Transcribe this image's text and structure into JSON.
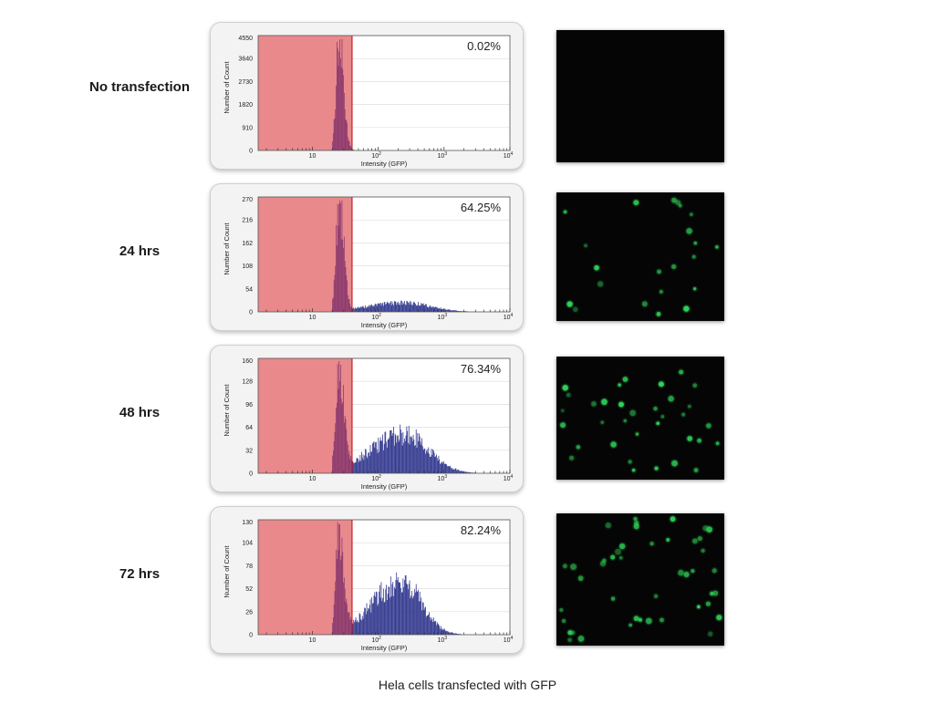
{
  "caption": "Hela cells transfected with GFP",
  "colors": {
    "gate_fill": "#e9898c",
    "gate_line": "#c8202a",
    "histogram_negative": "#8c3a6e",
    "histogram_positive": "#33398f",
    "cell_green": "#2fd45a"
  },
  "chart_data": [
    {
      "type": "bar",
      "row_label": "No transfection",
      "percentage_label": "0.02%",
      "xlabel": "Intensity (GFP)",
      "ylabel": "Number of Count",
      "x_scale": "log",
      "xlim": [
        1.5,
        10000
      ],
      "x_ticks": [
        {
          "label": "10",
          "exp": null
        },
        {
          "label": "10",
          "exp": "2"
        },
        {
          "label": "10",
          "exp": "3"
        },
        {
          "label": "10",
          "exp": "4"
        }
      ],
      "ylim": [
        0,
        4550
      ],
      "y_ticks": [
        "0",
        "910",
        "1820",
        "2730",
        "3640",
        "4550"
      ],
      "gate_max": 40,
      "distribution": {
        "negative_peak_x": 25,
        "negative_peak_y": 4450,
        "positive_center_x": null,
        "positive_peak_y": 0,
        "positive_width_log": 0
      }
    },
    {
      "type": "bar",
      "row_label": "24 hrs",
      "percentage_label": "64.25%",
      "xlabel": "Intensity (GFP)",
      "ylabel": "Number of Count",
      "x_scale": "log",
      "xlim": [
        1.5,
        10000
      ],
      "x_ticks": [
        {
          "label": "10",
          "exp": null
        },
        {
          "label": "10",
          "exp": "2"
        },
        {
          "label": "10",
          "exp": "3"
        },
        {
          "label": "10",
          "exp": "4"
        }
      ],
      "ylim": [
        0,
        270
      ],
      "y_ticks": [
        "0",
        "54",
        "108",
        "162",
        "216",
        "270"
      ],
      "gate_max": 40,
      "distribution": {
        "negative_peak_x": 25,
        "negative_peak_y": 262,
        "positive_center_x": 250,
        "positive_peak_y": 22,
        "positive_width_log": 0.65
      }
    },
    {
      "type": "bar",
      "row_label": "48 hrs",
      "percentage_label": "76.34%",
      "xlabel": "Intensity (GFP)",
      "ylabel": "Number of Count",
      "x_scale": "log",
      "xlim": [
        1.5,
        10000
      ],
      "x_ticks": [
        {
          "label": "10",
          "exp": null
        },
        {
          "label": "10",
          "exp": "2"
        },
        {
          "label": "10",
          "exp": "3"
        },
        {
          "label": "10",
          "exp": "4"
        }
      ],
      "ylim": [
        0,
        160
      ],
      "y_ticks": [
        "0",
        "32",
        "64",
        "96",
        "128",
        "160"
      ],
      "gate_max": 40,
      "distribution": {
        "negative_peak_x": 25,
        "negative_peak_y": 145,
        "positive_center_x": 250,
        "positive_peak_y": 55,
        "positive_width_log": 0.6
      }
    },
    {
      "type": "bar",
      "row_label": "72 hrs",
      "percentage_label": "82.24%",
      "xlabel": "Intensity (GFP)",
      "ylabel": "Number of Count",
      "x_scale": "log",
      "xlim": [
        1.5,
        10000
      ],
      "x_ticks": [
        {
          "label": "10",
          "exp": null
        },
        {
          "label": "10",
          "exp": "2"
        },
        {
          "label": "10",
          "exp": "3"
        },
        {
          "label": "10",
          "exp": "4"
        }
      ],
      "ylim": [
        0,
        130
      ],
      "y_ticks": [
        "0",
        "26",
        "52",
        "78",
        "104",
        "130"
      ],
      "gate_max": 40,
      "distribution": {
        "negative_peak_x": 25,
        "negative_peak_y": 118,
        "positive_center_x": 220,
        "positive_peak_y": 62,
        "positive_width_log": 0.5
      }
    }
  ],
  "micrographs": [
    {
      "name": "no-transfection",
      "cell_count": 0
    },
    {
      "name": "24-hrs",
      "cell_count": 22
    },
    {
      "name": "48-hrs",
      "cell_count": 34
    },
    {
      "name": "72-hrs",
      "cell_count": 44
    }
  ]
}
